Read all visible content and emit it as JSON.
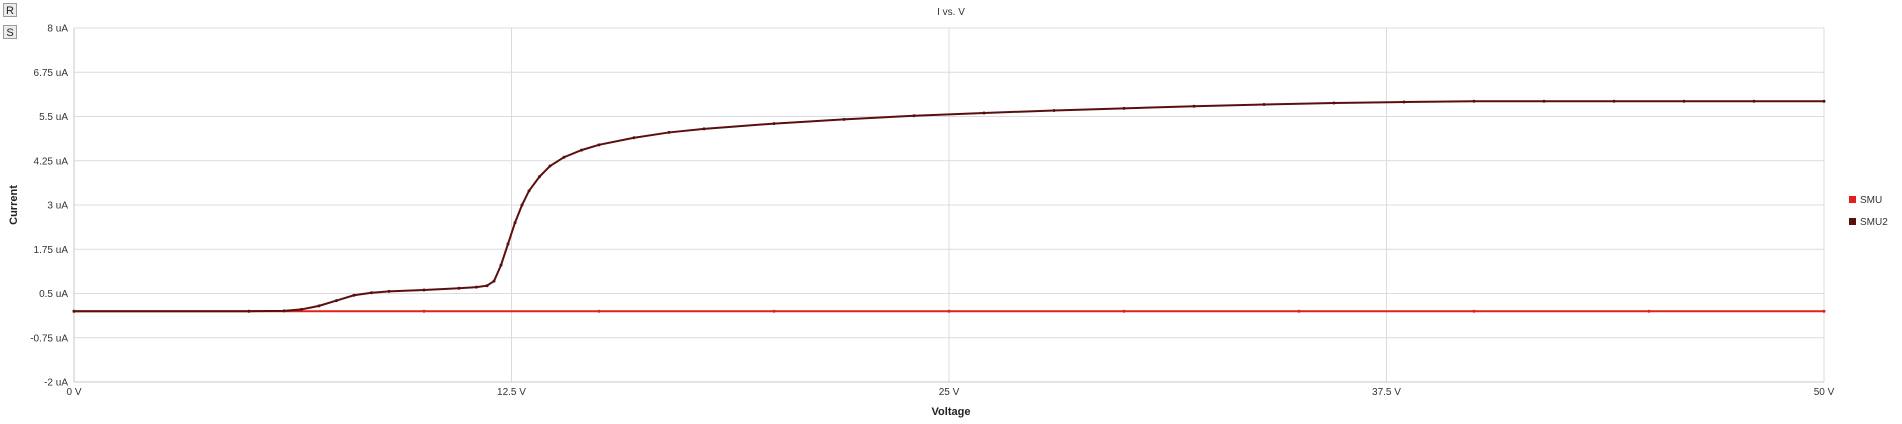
{
  "controls": {
    "reset_label": "R",
    "settings_label": "S"
  },
  "chart_data": {
    "type": "line",
    "title": "I vs. V",
    "xlabel": "Voltage",
    "ylabel": "Current",
    "xlim": [
      0,
      50
    ],
    "ylim": [
      -2,
      8
    ],
    "x_ticks": [
      0,
      12.5,
      25,
      37.5,
      50
    ],
    "x_tick_labels": [
      "0 V",
      "12.5 V",
      "25 V",
      "37.5 V",
      "50 V"
    ],
    "y_ticks": [
      -2,
      -0.75,
      0.5,
      1.75,
      3,
      4.25,
      5.5,
      6.75,
      8
    ],
    "y_tick_labels": [
      "-2 uA",
      "-0.75 uA",
      "0.5 uA",
      "1.75 uA",
      "3 uA",
      "4.25 uA",
      "5.5 uA",
      "6.75 uA",
      "8 uA"
    ],
    "grid": true,
    "legend_position": "right",
    "series": [
      {
        "name": "SMU",
        "color": "#e0201b",
        "x": [
          0,
          5,
          10,
          15,
          20,
          25,
          30,
          35,
          40,
          45,
          50
        ],
        "y": [
          0,
          0,
          0,
          0,
          0,
          0,
          0,
          0,
          0,
          0,
          0
        ]
      },
      {
        "name": "SMU2",
        "color": "#5a0f0f",
        "x": [
          0,
          5,
          6,
          6.5,
          7,
          7.5,
          8,
          8.5,
          9,
          10,
          11,
          11.5,
          11.8,
          12,
          12.2,
          12.4,
          12.6,
          12.8,
          13,
          13.3,
          13.6,
          14,
          14.5,
          15,
          16,
          17,
          18,
          20,
          22,
          24,
          26,
          28,
          30,
          32,
          34,
          36,
          38,
          40,
          42,
          44,
          46,
          48,
          50
        ],
        "y": [
          0,
          0,
          0.01,
          0.05,
          0.15,
          0.3,
          0.45,
          0.52,
          0.56,
          0.6,
          0.65,
          0.68,
          0.72,
          0.85,
          1.3,
          1.9,
          2.5,
          3.0,
          3.4,
          3.8,
          4.1,
          4.35,
          4.55,
          4.7,
          4.9,
          5.05,
          5.15,
          5.3,
          5.42,
          5.52,
          5.6,
          5.67,
          5.73,
          5.79,
          5.84,
          5.88,
          5.91,
          5.93,
          5.93,
          5.93,
          5.93,
          5.93,
          5.93
        ]
      }
    ]
  }
}
